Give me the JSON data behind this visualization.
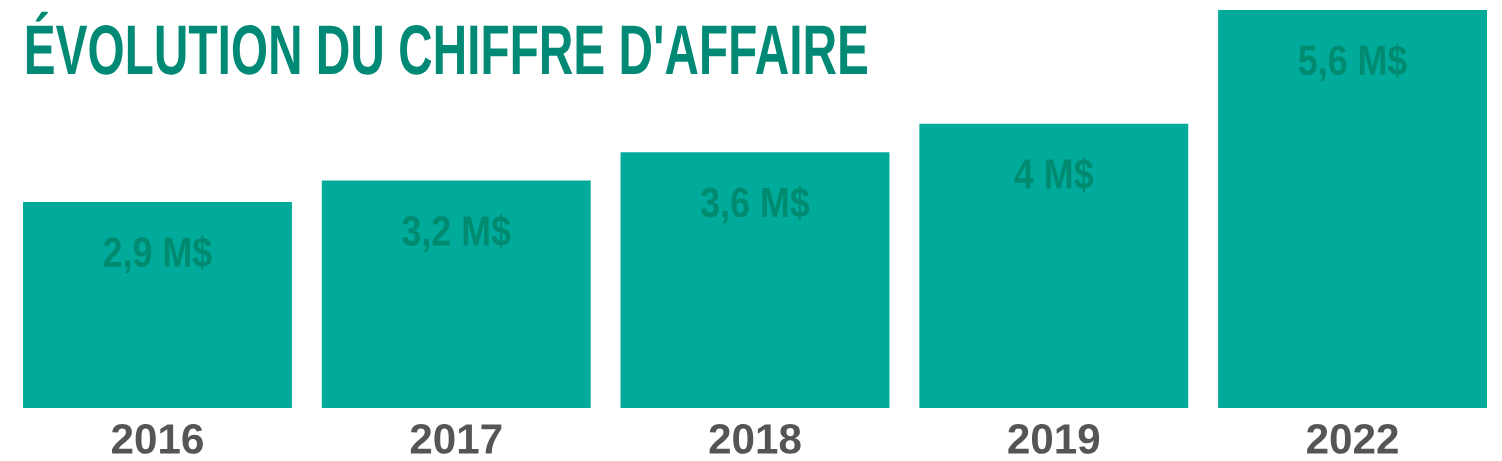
{
  "chart_data": {
    "type": "bar",
    "title": "ÉVOLUTION DU CHIFFRE D'AFFAIRE",
    "categories": [
      "2016",
      "2017",
      "2018",
      "2019",
      "2022"
    ],
    "values": [
      2.9,
      3.2,
      3.6,
      4,
      5.6
    ],
    "value_labels": [
      "2,9 M$",
      "3,2 M$",
      "3,6 M$",
      "4 M$",
      "5,6 M$"
    ],
    "color": "#00ab9b"
  }
}
